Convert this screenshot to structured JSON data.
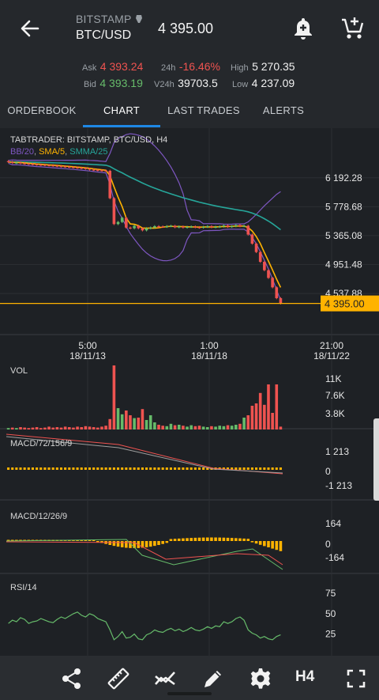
{
  "header": {
    "exchange": "BITSTAMP",
    "pair": "BTC/USD",
    "last_price": "4 395.00"
  },
  "stats": {
    "ask_label": "Ask",
    "ask_value": "4 393.24",
    "bid_label": "Bid",
    "bid_value": "4 393.19",
    "change_label": "24h",
    "change_value": "-16.46%",
    "volume_label": "V24h",
    "volume_value": "39703.5",
    "high_label": "High",
    "high_value": "5 270.35",
    "low_label": "Low",
    "low_value": "4 237.09"
  },
  "tabs": [
    {
      "label": "ORDERBOOK"
    },
    {
      "label": "CHART"
    },
    {
      "label": "LAST TRADES"
    },
    {
      "label": "ALERTS"
    }
  ],
  "colors": {
    "up": "#66bb6a",
    "down": "#ef5350",
    "sma": "#ffb300",
    "bb": "#7e57c2",
    "smma": "#26a69a",
    "price_line": "#ffb300"
  },
  "chart_data": [
    {
      "type": "candlestick",
      "title": "TABTRADER: BITSTAMP, BTC/USD, H4",
      "indicators": [
        "BB/20",
        "SMA/5",
        "SMMA/25"
      ],
      "y_ticks": [
        "6 192.28",
        "5 778.68",
        "5 365.08",
        "4 951.48",
        "4 537.88"
      ],
      "current_price_label": "4 395.00",
      "x_ticks": [
        {
          "time": "5:00",
          "date": "18/11/13"
        },
        {
          "time": "1:00",
          "date": "18/11/18"
        },
        {
          "time": "21:00",
          "date": "18/11/22"
        }
      ],
      "close": [
        6420,
        6405,
        6410,
        6400,
        6395,
        6390,
        6385,
        6380,
        6378,
        6372,
        6370,
        6365,
        6360,
        6355,
        6350,
        6345,
        6340,
        6335,
        6330,
        6322,
        6310,
        6305,
        6300,
        6296,
        6292,
        5900,
        5530,
        5560,
        5620,
        5480,
        5470,
        5505,
        5470,
        5440,
        5470,
        5480,
        5500,
        5495,
        5490,
        5500,
        5505,
        5485,
        5495,
        5480,
        5490,
        5495,
        5485,
        5480,
        5490,
        5500,
        5485,
        5490,
        5495,
        5510,
        5490,
        5500,
        5515,
        5500,
        5505,
        5380,
        5250,
        5130,
        4990,
        4870,
        4760,
        4625,
        4470,
        4395
      ]
    },
    {
      "type": "bar",
      "title": "VOL",
      "y_ticks": [
        "11K",
        "7.6K",
        "3.8K"
      ],
      "values": [
        0.3,
        0.4,
        0.3,
        0.5,
        0.4,
        0.3,
        0.4,
        0.5,
        0.3,
        0.4,
        0.6,
        0.4,
        0.5,
        0.4,
        0.6,
        0.5,
        0.4,
        0.6,
        0.5,
        0.7,
        0.6,
        0.5,
        0.4,
        0.6,
        0.8,
        2.2,
        13.5,
        4.5,
        3.2,
        4.0,
        3.0,
        2.4,
        2.5,
        4.3,
        2.0,
        3.0,
        1.5,
        1.0,
        0.8,
        0.7,
        1.2,
        0.9,
        1.0,
        0.8,
        0.6,
        0.9,
        0.7,
        0.8,
        0.6,
        0.5,
        0.7,
        0.6,
        0.8,
        0.7,
        0.9,
        0.8,
        1.0,
        1.2,
        2.5,
        3.0,
        5.0,
        5.5,
        7.7,
        5.2,
        9.5,
        3.5,
        9.5,
        0.6
      ]
    },
    {
      "type": "line",
      "title": "MACD/72/156/9",
      "y_ticks": [
        "1 213",
        "0",
        "-1 213"
      ]
    },
    {
      "type": "line",
      "title": "MACD/12/26/9",
      "y_ticks": [
        "164",
        "0",
        "-164"
      ]
    },
    {
      "type": "line",
      "title": "RSI/14",
      "y_ticks": [
        "75",
        "50",
        "25"
      ],
      "values": [
        38,
        42,
        40,
        45,
        43,
        38,
        40,
        41,
        44,
        42,
        40,
        39,
        43,
        46,
        44,
        47,
        50,
        52,
        48,
        46,
        50,
        48,
        44,
        42,
        40,
        30,
        18,
        22,
        28,
        20,
        21,
        25,
        19,
        18,
        24,
        26,
        30,
        28,
        27,
        30,
        32,
        29,
        31,
        28,
        30,
        33,
        30,
        29,
        31,
        34,
        32,
        35,
        34,
        40,
        38,
        40,
        44,
        46,
        42,
        30,
        26,
        24,
        20,
        22,
        19,
        18,
        22,
        24
      ]
    }
  ],
  "bottombar": {
    "timeframe": "H4",
    "icons": [
      "share-icon",
      "ruler-icon",
      "indicators-icon",
      "pencil-icon",
      "settings-icon",
      "fullscreen-icon"
    ]
  }
}
